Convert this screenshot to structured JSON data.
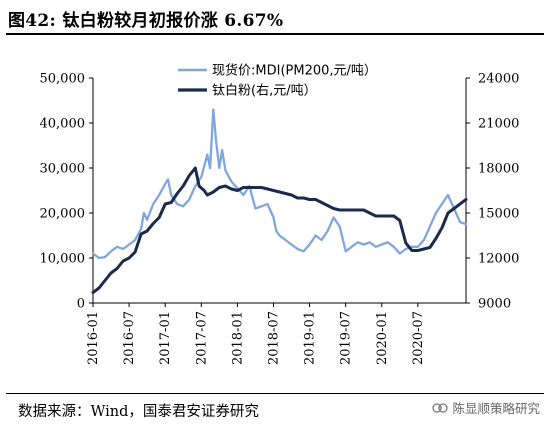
{
  "header": {
    "title": "图42: 钛白粉较月初报价涨 6.67%"
  },
  "footer": {
    "source": "数据来源：Wind，国泰君安证券研究",
    "watermark": "陈显顺策略研究",
    "watermark_icon": "wechat-channel-icon"
  },
  "colors": {
    "mdi": "#7fa7dd",
    "tio2": "#1a2b4c"
  },
  "chart_data": {
    "type": "line",
    "x_type": "date",
    "x_ticks": [
      "2016-01",
      "2016-07",
      "2017-01",
      "2017-07",
      "2018-01",
      "2018-07",
      "2019-01",
      "2019-07",
      "2020-01",
      "2020-07"
    ],
    "x_range": [
      "2016-01",
      "2021-03"
    ],
    "y_left": {
      "ticks": [
        "0",
        "10,000",
        "20,000",
        "30,000",
        "40,000",
        "50,000"
      ],
      "range": [
        0,
        50000
      ]
    },
    "y_right": {
      "ticks": [
        "9000",
        "12000",
        "15000",
        "18000",
        "21000",
        "24000"
      ],
      "range": [
        9000,
        24000
      ]
    },
    "grid": false,
    "legend": "top-center",
    "series": [
      {
        "name": "现货价:MDI(PM200,元/吨）",
        "axis": "left",
        "color": "#7fa7dd",
        "points": [
          [
            "2016-01-01",
            11000
          ],
          [
            "2016-02-01",
            10000
          ],
          [
            "2016-03-01",
            10200
          ],
          [
            "2016-04-01",
            11500
          ],
          [
            "2016-05-01",
            12500
          ],
          [
            "2016-06-01",
            12000
          ],
          [
            "2016-07-01",
            13000
          ],
          [
            "2016-08-01",
            14000
          ],
          [
            "2016-09-01",
            16500
          ],
          [
            "2016-09-15",
            20000
          ],
          [
            "2016-10-01",
            18500
          ],
          [
            "2016-11-01",
            22000
          ],
          [
            "2016-12-01",
            24000
          ],
          [
            "2017-01-01",
            26500
          ],
          [
            "2017-01-15",
            27500
          ],
          [
            "2017-02-01",
            24000
          ],
          [
            "2017-03-01",
            22000
          ],
          [
            "2017-04-01",
            21500
          ],
          [
            "2017-05-01",
            23000
          ],
          [
            "2017-06-01",
            26000
          ],
          [
            "2017-07-01",
            28000
          ],
          [
            "2017-08-01",
            33000
          ],
          [
            "2017-08-15",
            30000
          ],
          [
            "2017-09-01",
            43000
          ],
          [
            "2017-09-15",
            36000
          ],
          [
            "2017-10-01",
            30000
          ],
          [
            "2017-10-15",
            34000
          ],
          [
            "2017-11-01",
            29500
          ],
          [
            "2017-12-01",
            27000
          ],
          [
            "2018-01-01",
            25500
          ],
          [
            "2018-02-01",
            24000
          ],
          [
            "2018-03-01",
            26000
          ],
          [
            "2018-04-01",
            21000
          ],
          [
            "2018-05-01",
            21500
          ],
          [
            "2018-06-01",
            22000
          ],
          [
            "2018-07-01",
            19000
          ],
          [
            "2018-07-15",
            16000
          ],
          [
            "2018-08-01",
            15000
          ],
          [
            "2018-09-01",
            14000
          ],
          [
            "2018-10-01",
            13000
          ],
          [
            "2018-11-01",
            12000
          ],
          [
            "2018-12-01",
            11500
          ],
          [
            "2019-01-01",
            13000
          ],
          [
            "2019-02-01",
            15000
          ],
          [
            "2019-03-01",
            14000
          ],
          [
            "2019-04-01",
            16000
          ],
          [
            "2019-05-01",
            19000
          ],
          [
            "2019-06-01",
            17000
          ],
          [
            "2019-07-01",
            11500
          ],
          [
            "2019-08-01",
            12500
          ],
          [
            "2019-09-01",
            13500
          ],
          [
            "2019-10-01",
            13000
          ],
          [
            "2019-11-01",
            13500
          ],
          [
            "2019-12-01",
            12500
          ],
          [
            "2020-01-01",
            13000
          ],
          [
            "2020-02-01",
            13500
          ],
          [
            "2020-03-01",
            12500
          ],
          [
            "2020-04-01",
            11000
          ],
          [
            "2020-05-01",
            12000
          ],
          [
            "2020-06-01",
            12500
          ],
          [
            "2020-07-01",
            12500
          ],
          [
            "2020-08-01",
            14000
          ],
          [
            "2020-09-01",
            17000
          ],
          [
            "2020-10-01",
            20000
          ],
          [
            "2020-11-01",
            22000
          ],
          [
            "2020-12-01",
            24000
          ],
          [
            "2021-01-01",
            21000
          ],
          [
            "2021-02-01",
            18000
          ],
          [
            "2021-03-01",
            17500
          ]
        ]
      },
      {
        "name": "钛白粉(右,元/吨）",
        "axis": "right",
        "color": "#1a2b4c",
        "points": [
          [
            "2016-01-01",
            9700
          ],
          [
            "2016-02-01",
            10000
          ],
          [
            "2016-03-01",
            10500
          ],
          [
            "2016-04-01",
            11000
          ],
          [
            "2016-05-01",
            11300
          ],
          [
            "2016-06-01",
            11800
          ],
          [
            "2016-07-01",
            12000
          ],
          [
            "2016-08-01",
            12400
          ],
          [
            "2016-09-01",
            13600
          ],
          [
            "2016-10-01",
            13800
          ],
          [
            "2016-11-01",
            14300
          ],
          [
            "2016-12-01",
            14700
          ],
          [
            "2017-01-01",
            15600
          ],
          [
            "2017-02-01",
            15700
          ],
          [
            "2017-03-01",
            16300
          ],
          [
            "2017-04-01",
            16800
          ],
          [
            "2017-05-01",
            17500
          ],
          [
            "2017-06-01",
            18000
          ],
          [
            "2017-06-20",
            16800
          ],
          [
            "2017-07-15",
            16500
          ],
          [
            "2017-08-01",
            16200
          ],
          [
            "2017-09-01",
            16400
          ],
          [
            "2017-10-01",
            16700
          ],
          [
            "2017-11-01",
            16800
          ],
          [
            "2017-12-01",
            16600
          ],
          [
            "2018-01-01",
            16500
          ],
          [
            "2018-02-01",
            16700
          ],
          [
            "2018-03-01",
            16700
          ],
          [
            "2018-04-01",
            16700
          ],
          [
            "2018-05-01",
            16700
          ],
          [
            "2018-06-01",
            16600
          ],
          [
            "2018-07-01",
            16500
          ],
          [
            "2018-08-01",
            16400
          ],
          [
            "2018-09-01",
            16300
          ],
          [
            "2018-10-01",
            16200
          ],
          [
            "2018-11-01",
            16000
          ],
          [
            "2018-12-01",
            16000
          ],
          [
            "2019-01-01",
            15900
          ],
          [
            "2019-02-01",
            15900
          ],
          [
            "2019-03-01",
            15700
          ],
          [
            "2019-04-01",
            15500
          ],
          [
            "2019-05-01",
            15300
          ],
          [
            "2019-06-01",
            15200
          ],
          [
            "2019-07-01",
            15200
          ],
          [
            "2019-08-01",
            15200
          ],
          [
            "2019-09-01",
            15200
          ],
          [
            "2019-10-01",
            15200
          ],
          [
            "2019-11-01",
            15000
          ],
          [
            "2019-12-01",
            14800
          ],
          [
            "2020-01-01",
            14800
          ],
          [
            "2020-02-01",
            14800
          ],
          [
            "2020-03-01",
            14800
          ],
          [
            "2020-04-01",
            14500
          ],
          [
            "2020-05-01",
            13000
          ],
          [
            "2020-06-01",
            12500
          ],
          [
            "2020-07-01",
            12500
          ],
          [
            "2020-08-01",
            12600
          ],
          [
            "2020-09-01",
            12700
          ],
          [
            "2020-10-01",
            13300
          ],
          [
            "2020-11-01",
            14000
          ],
          [
            "2020-12-01",
            15000
          ],
          [
            "2021-01-01",
            15300
          ],
          [
            "2021-02-01",
            15600
          ],
          [
            "2021-03-01",
            15900
          ]
        ]
      }
    ]
  }
}
